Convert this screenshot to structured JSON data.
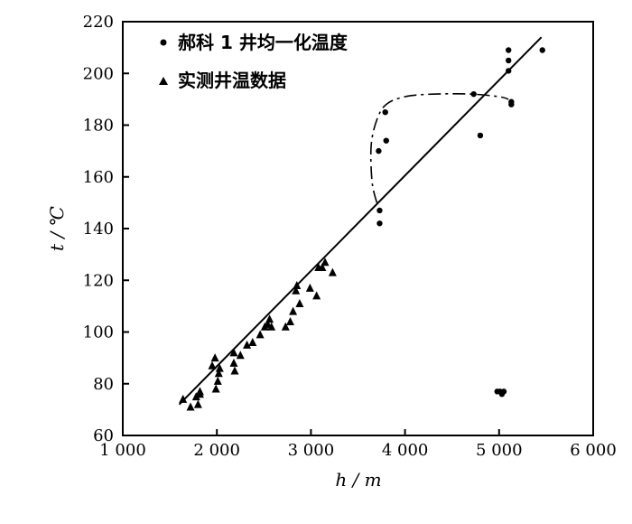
{
  "chart_data": {
    "type": "scatter",
    "xlabel": "h / m",
    "ylabel": "t / ℃",
    "xlim": [
      1000,
      6000
    ],
    "ylim": [
      60,
      220
    ],
    "x_ticks": [
      1000,
      2000,
      3000,
      4000,
      5000,
      6000
    ],
    "x_tick_labels": [
      "1 000",
      "2 000",
      "3 000",
      "4 000",
      "5 000",
      "6 000"
    ],
    "y_ticks": [
      60,
      80,
      100,
      120,
      140,
      160,
      180,
      200,
      220
    ],
    "y_tick_labels": [
      "60",
      "80",
      "100",
      "120",
      "140",
      "160",
      "180",
      "200",
      "220"
    ],
    "grid": false,
    "legend_position": "top-left",
    "series": [
      {
        "name": "郝科 1 井均一化温度",
        "marker": "dot",
        "points": [
          [
            3720,
            170
          ],
          [
            3730,
            147
          ],
          [
            3730,
            142
          ],
          [
            3790,
            185
          ],
          [
            3800,
            174
          ],
          [
            4730,
            192
          ],
          [
            4800,
            176
          ],
          [
            5100,
            209
          ],
          [
            5100,
            205
          ],
          [
            5100,
            201
          ],
          [
            5130,
            189
          ],
          [
            5130,
            188
          ],
          [
            5460,
            209
          ],
          [
            4980,
            77
          ],
          [
            5010,
            77
          ],
          [
            5030,
            76
          ],
          [
            5050,
            77
          ]
        ]
      },
      {
        "name": "实测井温数据",
        "marker": "triangle",
        "points": [
          [
            1640,
            74
          ],
          [
            1720,
            71
          ],
          [
            1780,
            75
          ],
          [
            1800,
            72
          ],
          [
            1820,
            77
          ],
          [
            1820,
            76
          ],
          [
            1950,
            87
          ],
          [
            1980,
            90
          ],
          [
            1990,
            78
          ],
          [
            2010,
            81
          ],
          [
            2020,
            84
          ],
          [
            2030,
            86
          ],
          [
            2180,
            92
          ],
          [
            2180,
            88
          ],
          [
            2190,
            85
          ],
          [
            2250,
            91
          ],
          [
            2320,
            95
          ],
          [
            2380,
            96
          ],
          [
            2460,
            99
          ],
          [
            2510,
            102
          ],
          [
            2540,
            103
          ],
          [
            2560,
            105
          ],
          [
            2580,
            102
          ],
          [
            2730,
            102
          ],
          [
            2780,
            104
          ],
          [
            2810,
            108
          ],
          [
            2840,
            116
          ],
          [
            2850,
            118
          ],
          [
            2880,
            111
          ],
          [
            2990,
            117
          ],
          [
            3060,
            114
          ],
          [
            3080,
            125
          ],
          [
            3120,
            125
          ],
          [
            3150,
            127
          ],
          [
            3230,
            123
          ]
        ]
      }
    ],
    "fit_line": {
      "x": [
        1600,
        5450
      ],
      "y": [
        72,
        214
      ]
    },
    "dashed_curve": {
      "x": [
        3700,
        3650,
        3640,
        3700,
        3800,
        4000,
        4300,
        4700,
        5000,
        5100
      ],
      "y": [
        150,
        158,
        172,
        182,
        188,
        191,
        192,
        192,
        191,
        190
      ]
    }
  }
}
